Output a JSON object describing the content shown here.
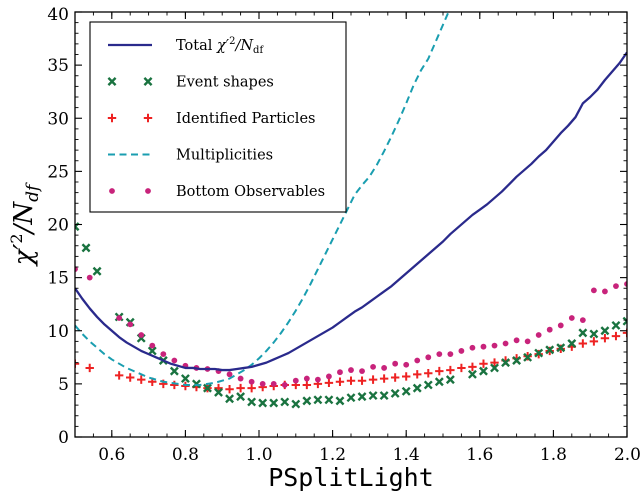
{
  "chart_data": {
    "type": "line",
    "xlabel": "PSplitLight",
    "ylabel": "χ′2/Ndf",
    "xlim": [
      0.5,
      2.0
    ],
    "ylim": [
      0,
      40
    ],
    "xticks": [
      0.6,
      0.8,
      1.0,
      1.2,
      1.4,
      1.6,
      1.8,
      2.0
    ],
    "yticks": [
      0,
      5,
      10,
      15,
      20,
      25,
      30,
      35,
      40
    ],
    "x_tick_labels": [
      "0.6",
      "0.8",
      "1.0",
      "1.2",
      "1.4",
      "1.6",
      "1.8",
      "2.0"
    ],
    "y_tick_labels": [
      "0",
      "5",
      "10",
      "15",
      "20",
      "25",
      "30",
      "35",
      "40"
    ],
    "grid": false,
    "legend_position": "top-left",
    "series": [
      {
        "name": "Total χ′2/Ndf",
        "legend_label": "Total χ′2/N",
        "legend_subscript": "df",
        "style": "line",
        "color": "#2a2a8c",
        "x": [
          0.5,
          0.52,
          0.54,
          0.56,
          0.58,
          0.6,
          0.62,
          0.64,
          0.66,
          0.68,
          0.7,
          0.72,
          0.74,
          0.76,
          0.78,
          0.8,
          0.82,
          0.84,
          0.86,
          0.88,
          0.9,
          0.92,
          0.94,
          0.96,
          0.98,
          1.0,
          1.02,
          1.04,
          1.06,
          1.08,
          1.1,
          1.12,
          1.14,
          1.16,
          1.18,
          1.2,
          1.22,
          1.24,
          1.26,
          1.28,
          1.3,
          1.32,
          1.34,
          1.36,
          1.38,
          1.4,
          1.42,
          1.44,
          1.46,
          1.48,
          1.5,
          1.52,
          1.54,
          1.56,
          1.58,
          1.6,
          1.62,
          1.64,
          1.66,
          1.68,
          1.7,
          1.72,
          1.74,
          1.76,
          1.78,
          1.8,
          1.82,
          1.84,
          1.86,
          1.88,
          1.9,
          1.92,
          1.94,
          1.96,
          1.98,
          2.0
        ],
        "y": [
          14.0,
          13.0,
          12.1,
          11.3,
          10.6,
          10.0,
          9.4,
          8.9,
          8.5,
          8.1,
          7.8,
          7.5,
          7.2,
          6.9,
          6.7,
          6.5,
          6.5,
          6.4,
          6.4,
          6.4,
          6.3,
          6.3,
          6.4,
          6.5,
          6.6,
          6.8,
          7.0,
          7.3,
          7.6,
          7.9,
          8.3,
          8.7,
          9.1,
          9.5,
          9.9,
          10.3,
          10.8,
          11.3,
          11.8,
          12.2,
          12.7,
          13.2,
          13.7,
          14.2,
          14.8,
          15.4,
          16.0,
          16.6,
          17.2,
          17.8,
          18.4,
          19.1,
          19.7,
          20.3,
          20.9,
          21.4,
          21.9,
          22.5,
          23.1,
          23.8,
          24.5,
          25.1,
          25.7,
          26.4,
          27.0,
          27.8,
          28.6,
          29.3,
          30.1,
          31.4,
          32.0,
          32.7,
          33.6,
          34.4,
          35.2,
          36.2
        ]
      },
      {
        "name": "Event shapes",
        "style": "x-markers",
        "color": "#1a7340",
        "x": [
          0.5,
          0.53,
          0.56,
          0.62,
          0.65,
          0.68,
          0.71,
          0.74,
          0.77,
          0.8,
          0.83,
          0.86,
          0.89,
          0.92,
          0.95,
          0.98,
          1.01,
          1.04,
          1.07,
          1.1,
          1.13,
          1.16,
          1.19,
          1.22,
          1.25,
          1.28,
          1.31,
          1.34,
          1.37,
          1.4,
          1.43,
          1.46,
          1.49,
          1.52,
          1.58,
          1.61,
          1.64,
          1.67,
          1.7,
          1.73,
          1.76,
          1.79,
          1.82,
          1.85,
          1.88,
          1.91,
          1.94,
          1.97,
          2.0
        ],
        "y": [
          19.8,
          17.8,
          15.6,
          11.3,
          10.8,
          9.3,
          8.1,
          7.2,
          6.2,
          5.5,
          5.0,
          4.6,
          4.2,
          3.6,
          3.8,
          3.3,
          3.2,
          3.2,
          3.3,
          3.1,
          3.4,
          3.5,
          3.5,
          3.4,
          3.7,
          3.8,
          3.9,
          3.9,
          4.1,
          4.3,
          4.6,
          4.9,
          5.2,
          5.4,
          5.9,
          6.2,
          6.5,
          7.0,
          7.2,
          7.5,
          7.9,
          8.2,
          8.4,
          8.8,
          9.8,
          9.7,
          10.0,
          10.5,
          10.9
        ]
      },
      {
        "name": "Identified Particles",
        "style": "plus-markers",
        "color": "#ee2222",
        "x": [
          0.5,
          0.54,
          0.62,
          0.65,
          0.68,
          0.71,
          0.74,
          0.77,
          0.8,
          0.83,
          0.86,
          0.89,
          0.92,
          0.95,
          0.98,
          1.01,
          1.04,
          1.07,
          1.1,
          1.13,
          1.16,
          1.19,
          1.22,
          1.25,
          1.28,
          1.31,
          1.34,
          1.37,
          1.4,
          1.43,
          1.46,
          1.49,
          1.52,
          1.55,
          1.58,
          1.61,
          1.64,
          1.67,
          1.7,
          1.73,
          1.76,
          1.79,
          1.82,
          1.85,
          1.88,
          1.91,
          1.94,
          1.97,
          2.0
        ],
        "y": [
          6.9,
          6.5,
          5.8,
          5.6,
          5.4,
          5.2,
          5.0,
          4.9,
          4.8,
          4.7,
          4.6,
          4.6,
          4.5,
          4.6,
          4.6,
          4.7,
          4.8,
          4.9,
          4.9,
          4.9,
          5.0,
          5.1,
          5.2,
          5.3,
          5.3,
          5.4,
          5.5,
          5.6,
          5.7,
          5.9,
          6.0,
          6.2,
          6.3,
          6.5,
          6.6,
          6.9,
          7.0,
          7.2,
          7.4,
          7.6,
          7.8,
          8.1,
          8.3,
          8.5,
          8.8,
          9.0,
          9.3,
          9.5,
          9.8
        ]
      },
      {
        "name": "Multiplicities",
        "style": "dashed-line",
        "color": "#1a9eb0",
        "x": [
          0.5,
          0.52,
          0.54,
          0.56,
          0.58,
          0.6,
          0.62,
          0.64,
          0.66,
          0.68,
          0.7,
          0.72,
          0.74,
          0.76,
          0.78,
          0.8,
          0.82,
          0.84,
          0.86,
          0.88,
          0.9,
          0.92,
          0.94,
          0.96,
          0.98,
          1.0,
          1.02,
          1.04,
          1.06,
          1.08,
          1.1,
          1.12,
          1.14,
          1.16,
          1.18,
          1.2,
          1.22,
          1.24,
          1.26,
          1.28,
          1.3,
          1.32,
          1.34,
          1.36,
          1.38,
          1.4,
          1.42,
          1.44,
          1.46,
          1.48,
          1.5,
          1.52
        ],
        "y": [
          10.5,
          9.7,
          9.0,
          8.4,
          7.8,
          7.3,
          6.9,
          6.5,
          6.2,
          5.9,
          5.6,
          5.4,
          5.2,
          5.1,
          5.0,
          4.9,
          4.9,
          4.9,
          5.0,
          5.1,
          5.3,
          5.5,
          5.9,
          6.3,
          6.8,
          7.4,
          8.1,
          8.9,
          9.8,
          10.8,
          11.9,
          13.1,
          14.4,
          15.8,
          17.2,
          18.6,
          20.0,
          21.4,
          22.8,
          23.7,
          24.5,
          25.6,
          26.9,
          28.3,
          29.8,
          31.4,
          33.1,
          34.5,
          35.6,
          37.2,
          38.8,
          40.4
        ]
      },
      {
        "name": "Bottom Observables",
        "style": "dot-markers",
        "color": "#c8237b",
        "x": [
          0.5,
          0.54,
          0.62,
          0.65,
          0.68,
          0.71,
          0.74,
          0.77,
          0.8,
          0.83,
          0.86,
          0.89,
          0.92,
          0.95,
          0.98,
          1.01,
          1.04,
          1.07,
          1.1,
          1.13,
          1.16,
          1.19,
          1.22,
          1.25,
          1.28,
          1.31,
          1.34,
          1.37,
          1.4,
          1.43,
          1.46,
          1.49,
          1.52,
          1.55,
          1.58,
          1.61,
          1.64,
          1.67,
          1.7,
          1.73,
          1.76,
          1.79,
          1.82,
          1.85,
          1.88,
          1.91,
          1.94,
          1.97,
          2.0
        ],
        "y": [
          15.8,
          15.0,
          11.2,
          10.6,
          9.6,
          8.6,
          7.8,
          7.2,
          6.7,
          6.5,
          6.4,
          6.2,
          5.9,
          5.5,
          5.2,
          5.0,
          5.0,
          4.9,
          5.3,
          5.5,
          5.4,
          5.7,
          6.1,
          6.3,
          6.2,
          6.6,
          6.5,
          6.9,
          6.8,
          7.2,
          7.5,
          7.8,
          7.8,
          8.1,
          8.4,
          8.5,
          8.6,
          8.8,
          9.1,
          9.0,
          9.6,
          10.1,
          10.5,
          11.2,
          11.0,
          13.8,
          13.7,
          14.2,
          14.4
        ]
      }
    ]
  }
}
